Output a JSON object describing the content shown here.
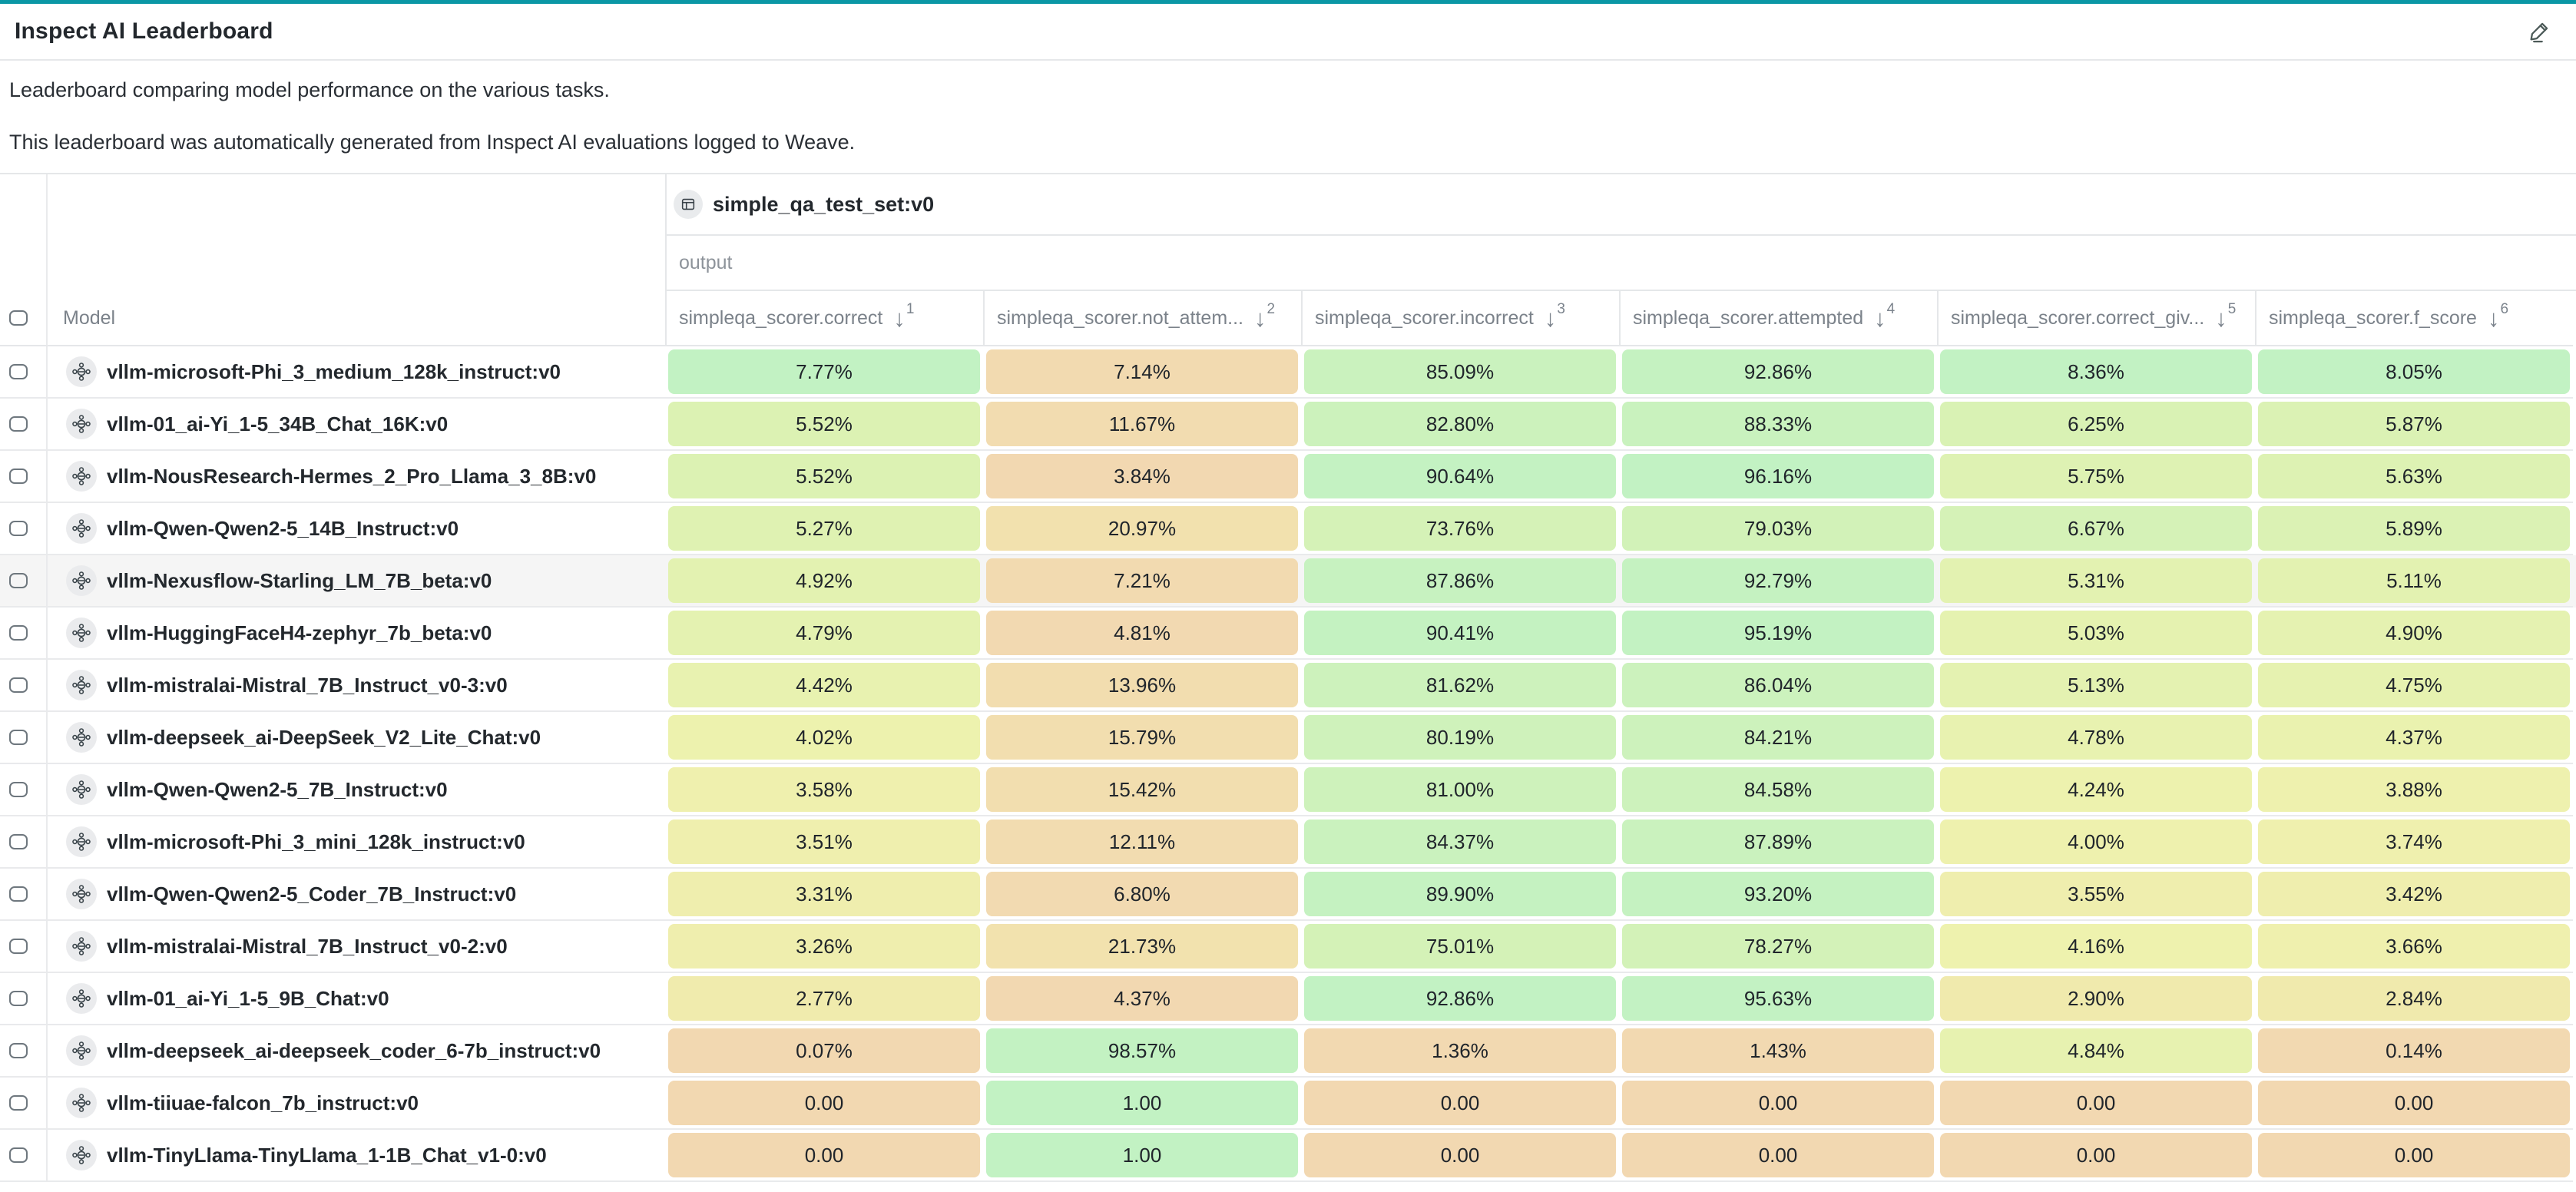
{
  "colors": {
    "accent_teal": "#0b97a5",
    "cell_colormap": [
      "#f2d8b1",
      "#f2e5ad",
      "#eef2ae",
      "#d9f2b4",
      "#c2f2c3"
    ],
    "row_hover": "#f5f5f5"
  },
  "header": {
    "title": "Inspect AI Leaderboard",
    "edit_icon": "pencil-icon"
  },
  "description": {
    "line1": "Leaderboard comparing model performance on the various tasks.",
    "line2": "This leaderboard was automatically generated from Inspect AI evaluations logged to Weave."
  },
  "table": {
    "group_header": {
      "icon": "table-icon",
      "label": "simple_qa_test_set:v0"
    },
    "subgroup_label": "output",
    "model_column_label": "Model",
    "sort_icon": "arrow-down",
    "hover_row_index": 4,
    "columns": [
      {
        "label": "simpleqa_scorer.correct",
        "sort_order": 1
      },
      {
        "label": "simpleqa_scorer.not_attem...",
        "sort_order": 2
      },
      {
        "label": "simpleqa_scorer.incorrect",
        "sort_order": 3
      },
      {
        "label": "simpleqa_scorer.attempted",
        "sort_order": 4
      },
      {
        "label": "simpleqa_scorer.correct_giv...",
        "sort_order": 5
      },
      {
        "label": "simpleqa_scorer.f_score",
        "sort_order": 6
      }
    ],
    "rows": [
      {
        "model": "vllm-microsoft-Phi_3_medium_128k_instruct:v0",
        "cells": [
          {
            "display": "7.77%",
            "value": 0.0777
          },
          {
            "display": "7.14%",
            "value": 0.0714
          },
          {
            "display": "85.09%",
            "value": 0.8509
          },
          {
            "display": "92.86%",
            "value": 0.9286
          },
          {
            "display": "8.36%",
            "value": 0.0836
          },
          {
            "display": "8.05%",
            "value": 0.0805
          }
        ]
      },
      {
        "model": "vllm-01_ai-Yi_1-5_34B_Chat_16K:v0",
        "cells": [
          {
            "display": "5.52%",
            "value": 0.0552
          },
          {
            "display": "11.67%",
            "value": 0.1167
          },
          {
            "display": "82.80%",
            "value": 0.828
          },
          {
            "display": "88.33%",
            "value": 0.8833
          },
          {
            "display": "6.25%",
            "value": 0.0625
          },
          {
            "display": "5.87%",
            "value": 0.0587
          }
        ]
      },
      {
        "model": "vllm-NousResearch-Hermes_2_Pro_Llama_3_8B:v0",
        "cells": [
          {
            "display": "5.52%",
            "value": 0.0552
          },
          {
            "display": "3.84%",
            "value": 0.0384
          },
          {
            "display": "90.64%",
            "value": 0.9064
          },
          {
            "display": "96.16%",
            "value": 0.9616
          },
          {
            "display": "5.75%",
            "value": 0.0575
          },
          {
            "display": "5.63%",
            "value": 0.0563
          }
        ]
      },
      {
        "model": "vllm-Qwen-Qwen2-5_14B_Instruct:v0",
        "cells": [
          {
            "display": "5.27%",
            "value": 0.0527
          },
          {
            "display": "20.97%",
            "value": 0.2097
          },
          {
            "display": "73.76%",
            "value": 0.7376
          },
          {
            "display": "79.03%",
            "value": 0.7903
          },
          {
            "display": "6.67%",
            "value": 0.0667
          },
          {
            "display": "5.89%",
            "value": 0.0589
          }
        ]
      },
      {
        "model": "vllm-Nexusflow-Starling_LM_7B_beta:v0",
        "cells": [
          {
            "display": "4.92%",
            "value": 0.0492
          },
          {
            "display": "7.21%",
            "value": 0.0721
          },
          {
            "display": "87.86%",
            "value": 0.8786
          },
          {
            "display": "92.79%",
            "value": 0.9279
          },
          {
            "display": "5.31%",
            "value": 0.0531
          },
          {
            "display": "5.11%",
            "value": 0.0511
          }
        ]
      },
      {
        "model": "vllm-HuggingFaceH4-zephyr_7b_beta:v0",
        "cells": [
          {
            "display": "4.79%",
            "value": 0.0479
          },
          {
            "display": "4.81%",
            "value": 0.0481
          },
          {
            "display": "90.41%",
            "value": 0.9041
          },
          {
            "display": "95.19%",
            "value": 0.9519
          },
          {
            "display": "5.03%",
            "value": 0.0503
          },
          {
            "display": "4.90%",
            "value": 0.049
          }
        ]
      },
      {
        "model": "vllm-mistralai-Mistral_7B_Instruct_v0-3:v0",
        "cells": [
          {
            "display": "4.42%",
            "value": 0.0442
          },
          {
            "display": "13.96%",
            "value": 0.1396
          },
          {
            "display": "81.62%",
            "value": 0.8162
          },
          {
            "display": "86.04%",
            "value": 0.8604
          },
          {
            "display": "5.13%",
            "value": 0.0513
          },
          {
            "display": "4.75%",
            "value": 0.0475
          }
        ]
      },
      {
        "model": "vllm-deepseek_ai-DeepSeek_V2_Lite_Chat:v0",
        "cells": [
          {
            "display": "4.02%",
            "value": 0.0402
          },
          {
            "display": "15.79%",
            "value": 0.1579
          },
          {
            "display": "80.19%",
            "value": 0.8019
          },
          {
            "display": "84.21%",
            "value": 0.8421
          },
          {
            "display": "4.78%",
            "value": 0.0478
          },
          {
            "display": "4.37%",
            "value": 0.0437
          }
        ]
      },
      {
        "model": "vllm-Qwen-Qwen2-5_7B_Instruct:v0",
        "cells": [
          {
            "display": "3.58%",
            "value": 0.0358
          },
          {
            "display": "15.42%",
            "value": 0.1542
          },
          {
            "display": "81.00%",
            "value": 0.81
          },
          {
            "display": "84.58%",
            "value": 0.8458
          },
          {
            "display": "4.24%",
            "value": 0.0424
          },
          {
            "display": "3.88%",
            "value": 0.0388
          }
        ]
      },
      {
        "model": "vllm-microsoft-Phi_3_mini_128k_instruct:v0",
        "cells": [
          {
            "display": "3.51%",
            "value": 0.0351
          },
          {
            "display": "12.11%",
            "value": 0.1211
          },
          {
            "display": "84.37%",
            "value": 0.8437
          },
          {
            "display": "87.89%",
            "value": 0.8789
          },
          {
            "display": "4.00%",
            "value": 0.04
          },
          {
            "display": "3.74%",
            "value": 0.0374
          }
        ]
      },
      {
        "model": "vllm-Qwen-Qwen2-5_Coder_7B_Instruct:v0",
        "cells": [
          {
            "display": "3.31%",
            "value": 0.0331
          },
          {
            "display": "6.80%",
            "value": 0.068
          },
          {
            "display": "89.90%",
            "value": 0.899
          },
          {
            "display": "93.20%",
            "value": 0.932
          },
          {
            "display": "3.55%",
            "value": 0.0355
          },
          {
            "display": "3.42%",
            "value": 0.0342
          }
        ]
      },
      {
        "model": "vllm-mistralai-Mistral_7B_Instruct_v0-2:v0",
        "cells": [
          {
            "display": "3.26%",
            "value": 0.0326
          },
          {
            "display": "21.73%",
            "value": 0.2173
          },
          {
            "display": "75.01%",
            "value": 0.7501
          },
          {
            "display": "78.27%",
            "value": 0.7827
          },
          {
            "display": "4.16%",
            "value": 0.0416
          },
          {
            "display": "3.66%",
            "value": 0.0366
          }
        ]
      },
      {
        "model": "vllm-01_ai-Yi_1-5_9B_Chat:v0",
        "cells": [
          {
            "display": "2.77%",
            "value": 0.0277
          },
          {
            "display": "4.37%",
            "value": 0.0437
          },
          {
            "display": "92.86%",
            "value": 0.9286
          },
          {
            "display": "95.63%",
            "value": 0.9563
          },
          {
            "display": "2.90%",
            "value": 0.029
          },
          {
            "display": "2.84%",
            "value": 0.0284
          }
        ]
      },
      {
        "model": "vllm-deepseek_ai-deepseek_coder_6-7b_instruct:v0",
        "cells": [
          {
            "display": "0.07%",
            "value": 0.0007
          },
          {
            "display": "98.57%",
            "value": 0.9857
          },
          {
            "display": "1.36%",
            "value": 0.0136
          },
          {
            "display": "1.43%",
            "value": 0.0143
          },
          {
            "display": "4.84%",
            "value": 0.0484
          },
          {
            "display": "0.14%",
            "value": 0.0014
          }
        ]
      },
      {
        "model": "vllm-tiiuae-falcon_7b_instruct:v0",
        "cells": [
          {
            "display": "0.00",
            "value": 0
          },
          {
            "display": "1.00",
            "value": 1
          },
          {
            "display": "0.00",
            "value": 0
          },
          {
            "display": "0.00",
            "value": 0
          },
          {
            "display": "0.00",
            "value": 0
          },
          {
            "display": "0.00",
            "value": 0
          }
        ]
      },
      {
        "model": "vllm-TinyLlama-TinyLlama_1-1B_Chat_v1-0:v0",
        "cells": [
          {
            "display": "0.00",
            "value": 0
          },
          {
            "display": "1.00",
            "value": 1
          },
          {
            "display": "0.00",
            "value": 0
          },
          {
            "display": "0.00",
            "value": 0
          },
          {
            "display": "0.00",
            "value": 0
          },
          {
            "display": "0.00",
            "value": 0
          }
        ]
      }
    ]
  }
}
